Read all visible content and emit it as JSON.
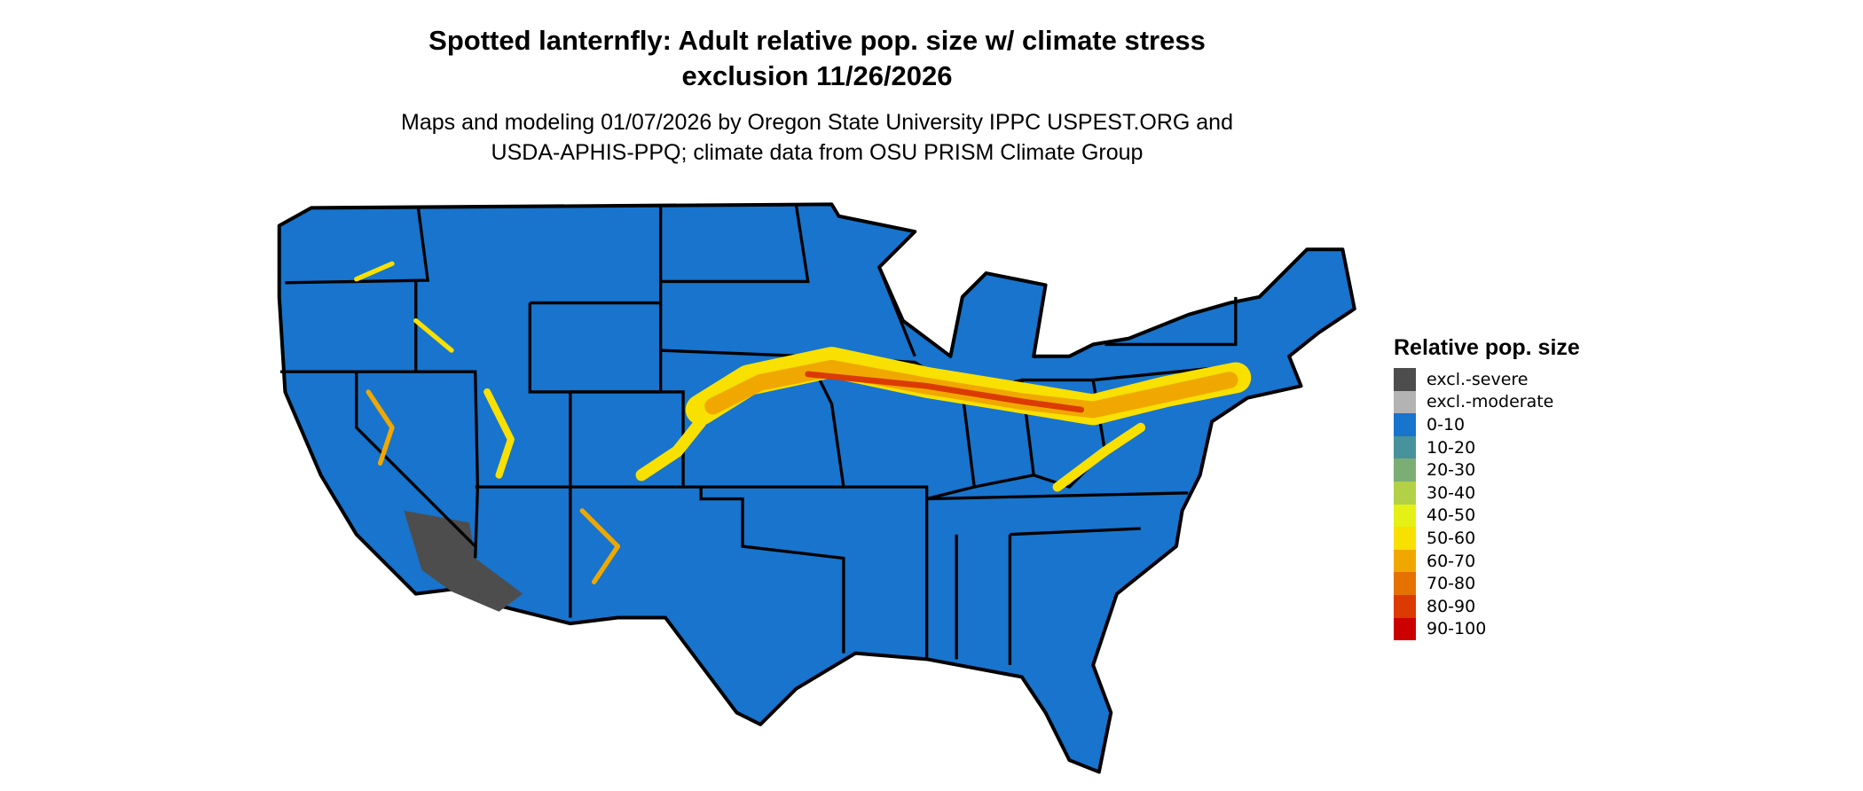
{
  "title": {
    "line1": "Spotted lanternfly: Adult relative pop. size w/ climate stress",
    "line2": "exclusion 11/26/2026"
  },
  "subtitle": {
    "line1": "Maps and modeling 01/07/2026 by Oregon State University IPPC USPEST.ORG and",
    "line2": "USDA-APHIS-PPQ; climate data from OSU PRISM Climate Group"
  },
  "legend": {
    "title": "Relative pop. size",
    "items": [
      {
        "label": "excl.-severe",
        "color": "#4d4d4d"
      },
      {
        "label": "excl.-moderate",
        "color": "#b3b3b3"
      },
      {
        "label": "0-10",
        "color": "#1874cd"
      },
      {
        "label": "10-20",
        "color": "#48929b"
      },
      {
        "label": "20-30",
        "color": "#7bae74"
      },
      {
        "label": "30-40",
        "color": "#b2d147"
      },
      {
        "label": "40-50",
        "color": "#e5f016"
      },
      {
        "label": "50-60",
        "color": "#f8e000"
      },
      {
        "label": "60-70",
        "color": "#f0a800"
      },
      {
        "label": "70-80",
        "color": "#e57200"
      },
      {
        "label": "80-90",
        "color": "#db3a00"
      },
      {
        "label": "90-100",
        "color": "#cc0000"
      }
    ]
  }
}
